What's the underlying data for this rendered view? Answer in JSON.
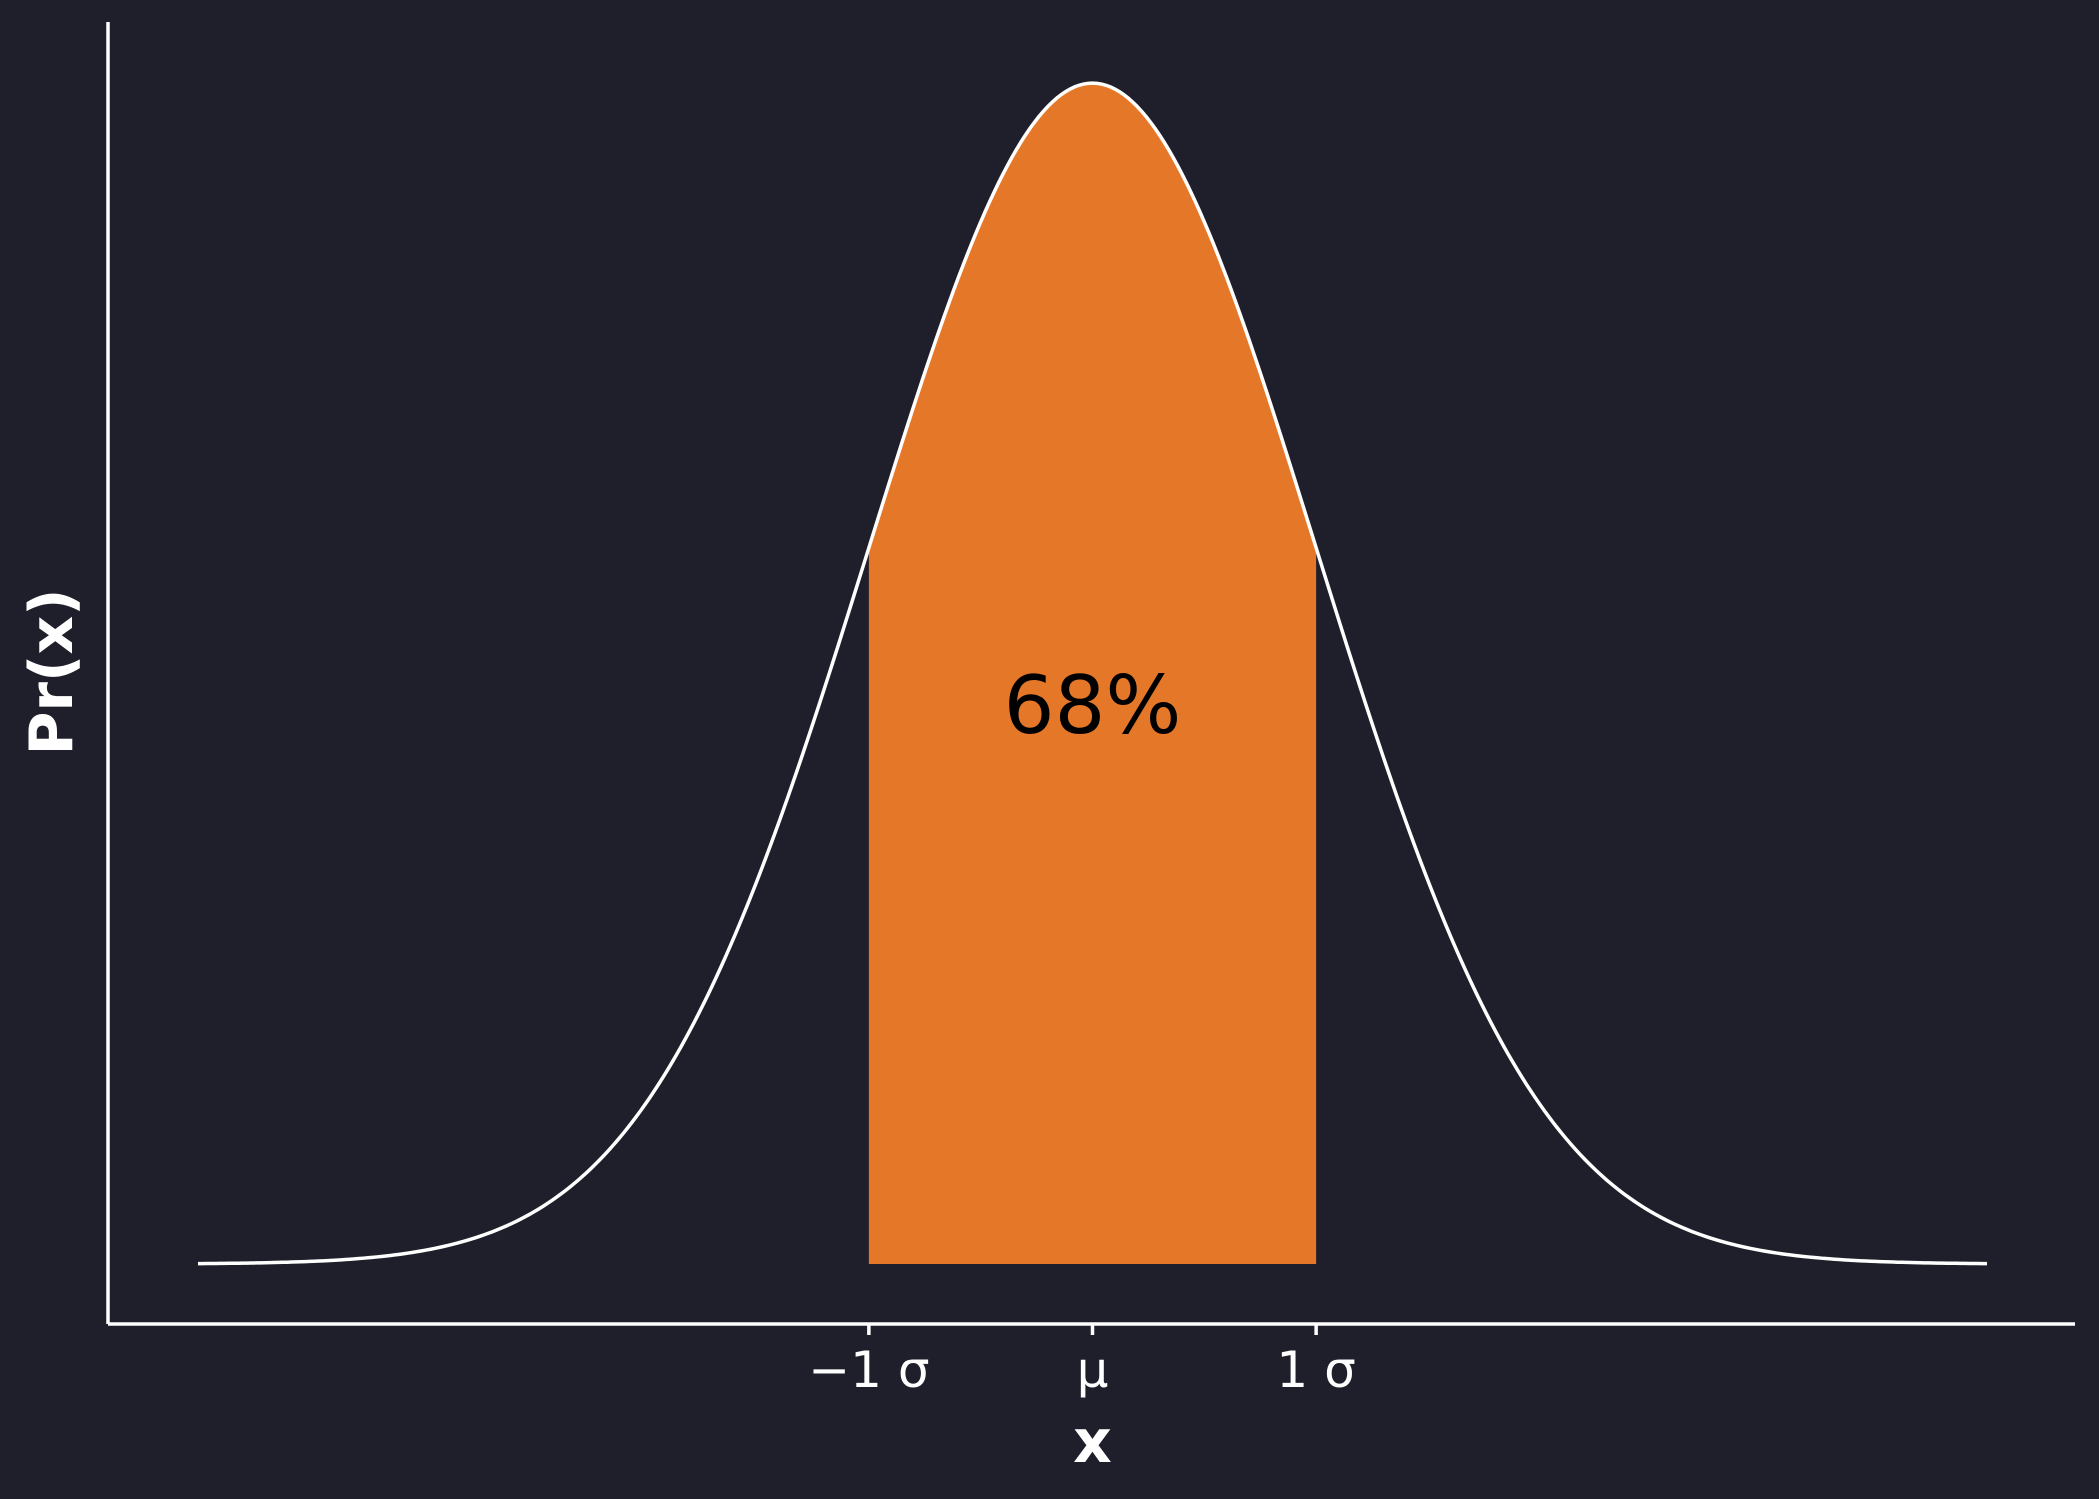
{
  "chart_data": {
    "type": "area",
    "title": "",
    "xlabel": "x",
    "ylabel": "Pr(x)",
    "distribution": "normal",
    "mean": 0,
    "sd": 1,
    "xlim": [
      -4,
      4
    ],
    "ylim": [
      0,
      0.4
    ],
    "x_ticks": [
      {
        "value": -1,
        "label": "−1 σ"
      },
      {
        "value": 0,
        "label": "μ"
      },
      {
        "value": 1,
        "label": "1 σ"
      }
    ],
    "shaded_region": {
      "from": -1,
      "to": 1,
      "color": "#e57729"
    },
    "annotation": {
      "text": "68%",
      "x": 0,
      "color": "#000000"
    },
    "curve_color": "#ffffff",
    "background": "#1e1f2a",
    "grid": false,
    "legend": "none"
  }
}
